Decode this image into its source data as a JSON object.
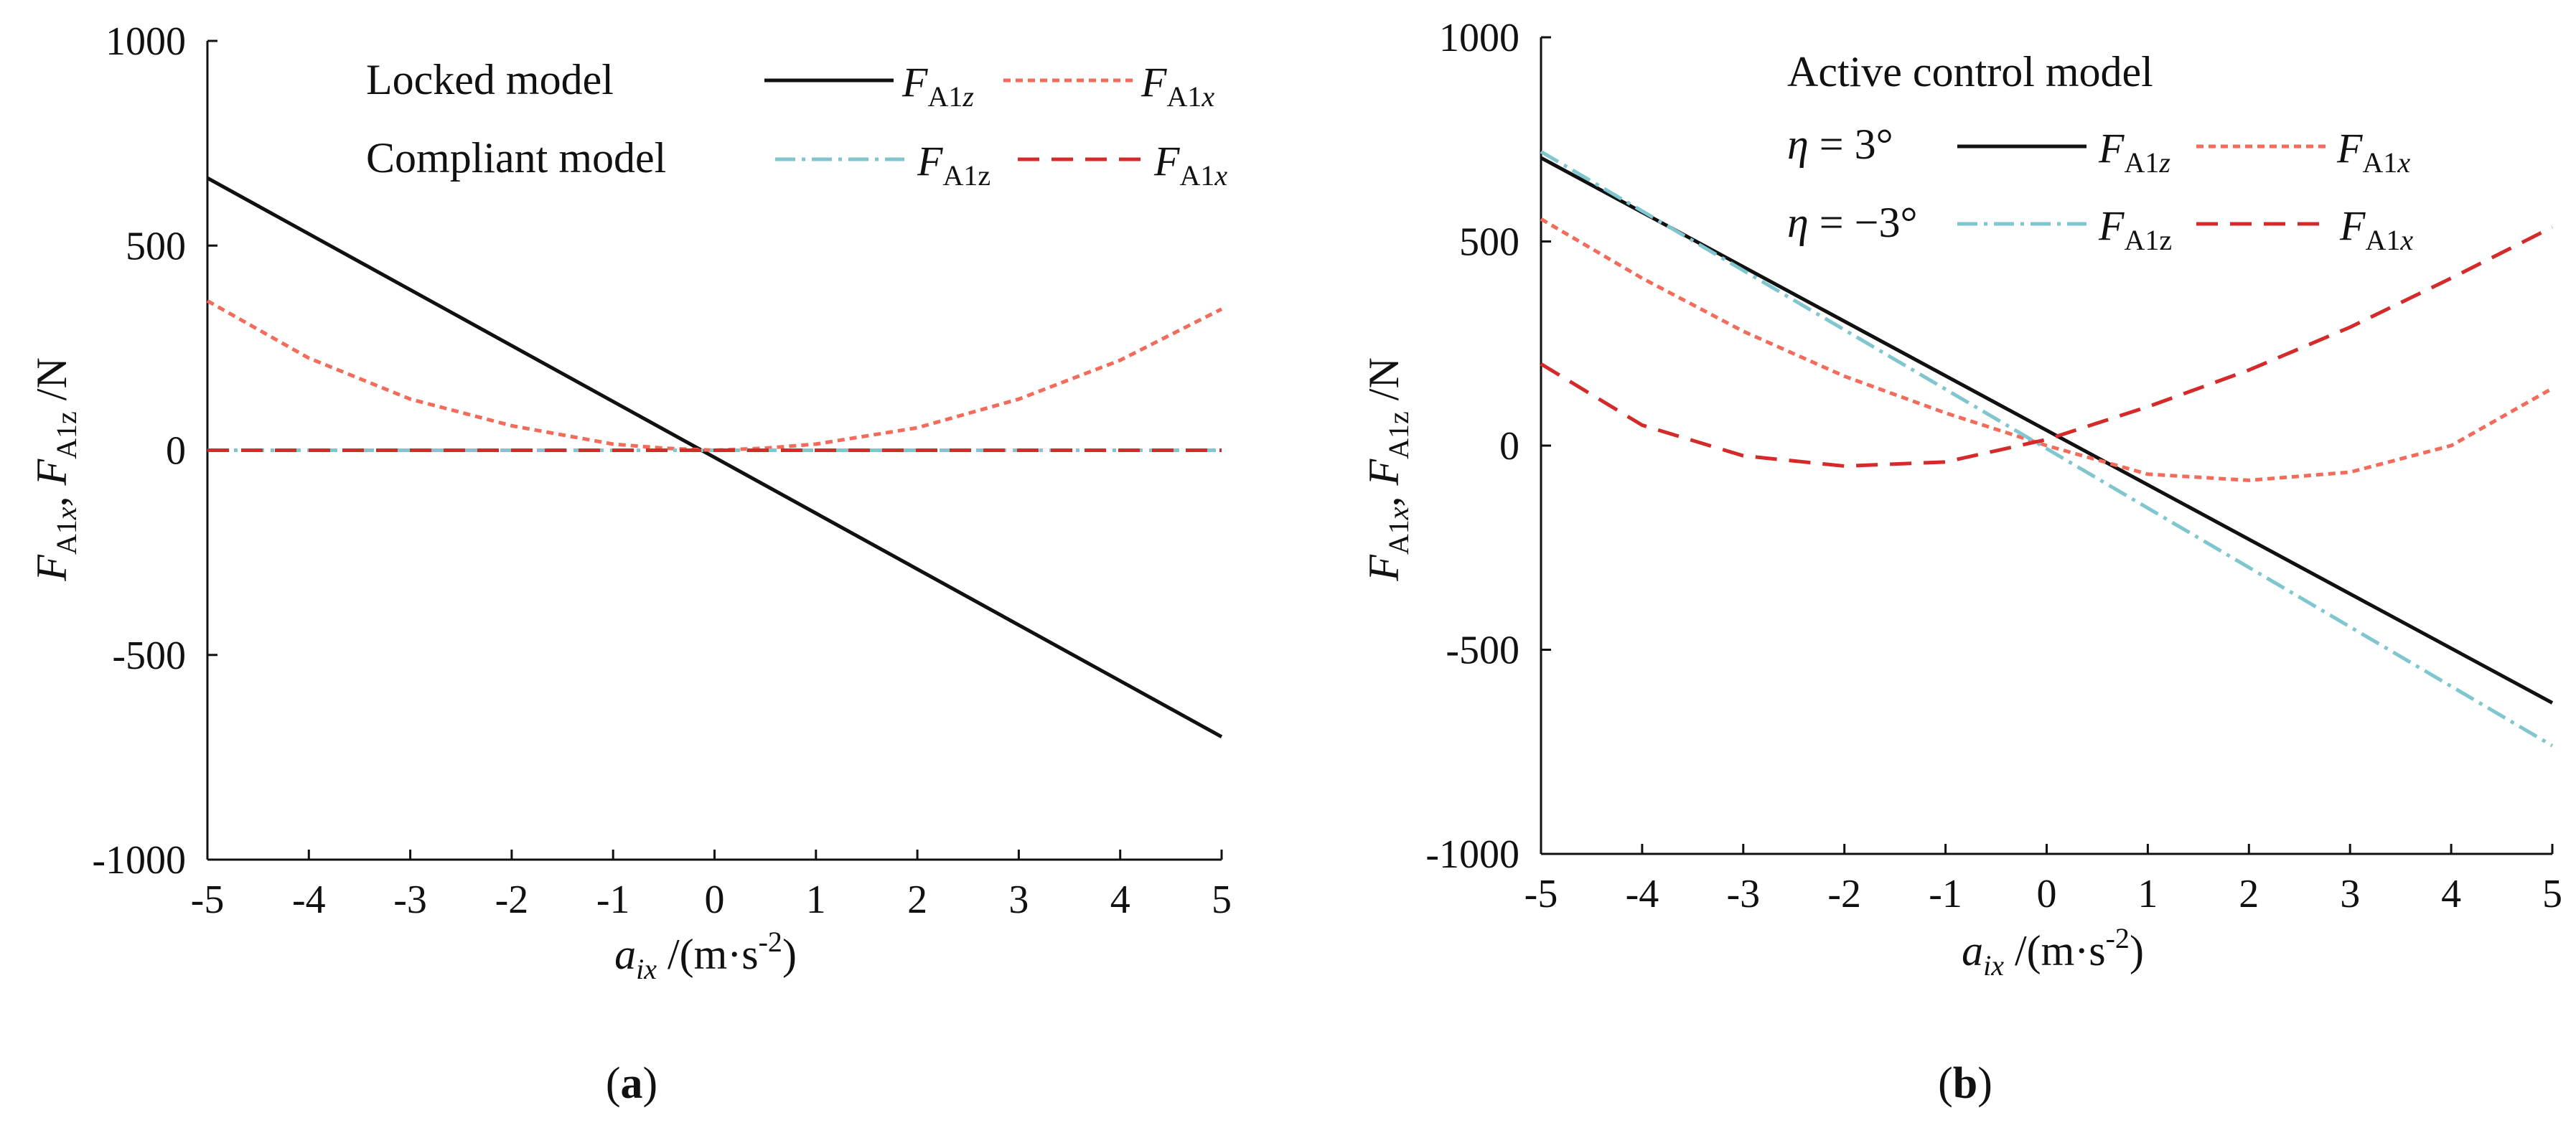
{
  "chart_data": [
    {
      "type": "line",
      "panel_label": "a",
      "xlabel": "a_ix /(m·s^-2)",
      "ylabel": "F_A1x, F_A1z /N",
      "xlim": [
        -5,
        5
      ],
      "ylim": [
        -1000,
        1000
      ],
      "xticks": [
        "-5",
        "-4",
        "-3",
        "-2",
        "-1",
        "0",
        "1",
        "2",
        "3",
        "4",
        "5"
      ],
      "yticks": [
        "1000",
        "500",
        "0",
        "-500",
        "-1000"
      ],
      "legend_position": "top",
      "legend_groups": [
        "Locked model",
        "Compliant model"
      ],
      "series": [
        {
          "name": "F_A1z",
          "group": "Locked model",
          "color": "#111111",
          "style": "solid",
          "x": [
            -5,
            5
          ],
          "y": [
            665,
            -700
          ]
        },
        {
          "name": "F_A1x",
          "group": "Locked model",
          "color": "#f26b5b",
          "style": "dotted",
          "x": [
            -5,
            -4,
            -3,
            -2,
            -1,
            -0.5,
            0,
            0.5,
            1,
            2,
            3,
            4,
            5
          ],
          "y": [
            365,
            225,
            125,
            60,
            15,
            5,
            0,
            5,
            15,
            55,
            125,
            220,
            345
          ]
        },
        {
          "name": "F_A1z",
          "group": "Compliant model",
          "color": "#7fc6cf",
          "style": "dashdot",
          "x": [
            -5,
            5
          ],
          "y": [
            0,
            0
          ]
        },
        {
          "name": "F_A1x",
          "group": "Compliant model",
          "color": "#d42a2a",
          "style": "dashed",
          "x": [
            -5,
            5
          ],
          "y": [
            0,
            0
          ]
        }
      ]
    },
    {
      "type": "line",
      "panel_label": "b",
      "xlabel": "a_ix /(m·s^-2)",
      "ylabel": "F_A1x, F_A1z /N",
      "xlim": [
        -5,
        5
      ],
      "ylim": [
        -1000,
        1000
      ],
      "xticks": [
        "-5",
        "-4",
        "-3",
        "-2",
        "-1",
        "0",
        "1",
        "2",
        "3",
        "4",
        "5"
      ],
      "yticks": [
        "1000",
        "500",
        "0",
        "-500",
        "-1000"
      ],
      "legend_position": "top",
      "legend_title": "Active control model",
      "legend_groups": [
        "η = 3°",
        "η = −3°"
      ],
      "series": [
        {
          "name": "F_A1z",
          "group": "η = 3°",
          "color": "#111111",
          "style": "solid",
          "x": [
            -5,
            5
          ],
          "y": [
            705,
            -630
          ]
        },
        {
          "name": "F_A1x",
          "group": "η = 3°",
          "color": "#f26b5b",
          "style": "dotted",
          "x": [
            -5,
            -4,
            -3,
            -2,
            -1,
            0,
            1,
            2,
            3,
            4,
            5
          ],
          "y": [
            555,
            410,
            280,
            170,
            80,
            0,
            -70,
            -85,
            -65,
            0,
            140
          ]
        },
        {
          "name": "F_A1z",
          "group": "η = −3°",
          "color": "#7fc6cf",
          "style": "dashdot",
          "x": [
            -5,
            5
          ],
          "y": [
            720,
            -735
          ]
        },
        {
          "name": "F_A1x",
          "group": "η = −3°",
          "color": "#d42a2a",
          "style": "dashed",
          "x": [
            -5,
            -4,
            -3,
            -2,
            -1,
            0,
            1,
            2,
            3,
            4,
            5
          ],
          "y": [
            200,
            50,
            -25,
            -50,
            -40,
            15,
            95,
            185,
            290,
            410,
            535
          ]
        }
      ]
    }
  ]
}
